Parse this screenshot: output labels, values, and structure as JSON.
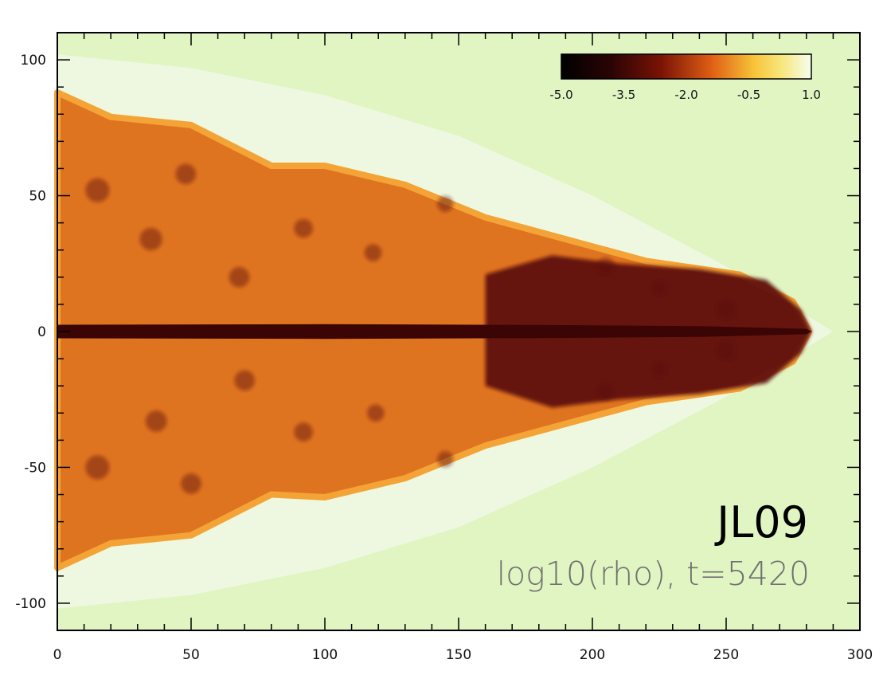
{
  "colors": {
    "background": "#e1f5c2",
    "bow_shock": "#eef8e2",
    "cocoon": "#df7420",
    "cocoon_light": "#f4a437",
    "jet_core": "#3a0504",
    "dark_lobe": "#5b0d0b",
    "axis_frame": "#000000"
  },
  "chart_data": {
    "type": "heatmap",
    "colormap": "heat",
    "xlim": [
      0,
      300
    ],
    "ylim": [
      -110,
      110
    ],
    "x_ticks": [
      0,
      50,
      100,
      150,
      200,
      250,
      300
    ],
    "y_ticks": [
      -100,
      -50,
      0,
      50,
      100
    ],
    "x_tick_labels": [
      "0",
      "50",
      "100",
      "150",
      "200",
      "250",
      "300"
    ],
    "y_tick_labels": [
      "-100",
      "-50",
      "0",
      "50",
      "100"
    ],
    "colorbar": {
      "range": [
        -5.0,
        1.0
      ],
      "ticks": [
        -5.0,
        -3.5,
        -2.0,
        -0.5,
        1.0
      ],
      "tick_labels": [
        "-5.0",
        "-3.5",
        "-2.0",
        "-0.5",
        "1.0"
      ],
      "placement": "top-right"
    },
    "annotations": {
      "run_label": "JL09",
      "caption": "log10(rho), t=5420"
    },
    "shapes": {
      "bow_shock_outline": [
        [
          0,
          102
        ],
        [
          50,
          97
        ],
        [
          100,
          87
        ],
        [
          150,
          72
        ],
        [
          200,
          50
        ],
        [
          250,
          24
        ],
        [
          290,
          0
        ],
        [
          250,
          -24
        ],
        [
          200,
          -50
        ],
        [
          150,
          -72
        ],
        [
          100,
          -87
        ],
        [
          50,
          -97
        ],
        [
          0,
          -102
        ]
      ],
      "cocoon_outline": [
        [
          0,
          88
        ],
        [
          20,
          79
        ],
        [
          50,
          76
        ],
        [
          80,
          61
        ],
        [
          100,
          61
        ],
        [
          130,
          54
        ],
        [
          160,
          42
        ],
        [
          190,
          34
        ],
        [
          220,
          26
        ],
        [
          255,
          21
        ],
        [
          275,
          11
        ],
        [
          281,
          0
        ],
        [
          275,
          -11
        ],
        [
          255,
          -21
        ],
        [
          220,
          -26
        ],
        [
          190,
          -34
        ],
        [
          160,
          -42
        ],
        [
          130,
          -54
        ],
        [
          100,
          -61
        ],
        [
          80,
          -60
        ],
        [
          50,
          -75
        ],
        [
          20,
          -78
        ],
        [
          0,
          -87
        ]
      ],
      "dark_lobe_outline": [
        [
          160,
          21
        ],
        [
          185,
          28
        ],
        [
          210,
          25
        ],
        [
          240,
          23
        ],
        [
          265,
          19
        ],
        [
          278,
          8
        ],
        [
          282,
          0
        ],
        [
          278,
          -8
        ],
        [
          265,
          -19
        ],
        [
          240,
          -23
        ],
        [
          210,
          -25
        ],
        [
          185,
          -28
        ],
        [
          160,
          -20
        ]
      ],
      "jet_core_outline": [
        [
          0,
          2.5
        ],
        [
          100,
          2.7
        ],
        [
          180,
          2.4
        ],
        [
          240,
          2.0
        ],
        [
          280,
          1.0
        ],
        [
          282,
          0
        ],
        [
          280,
          -1.0
        ],
        [
          240,
          -2.0
        ],
        [
          180,
          -2.4
        ],
        [
          100,
          -2.7
        ],
        [
          0,
          -2.5
        ]
      ],
      "vortices": [
        [
          15,
          52,
          4.5
        ],
        [
          35,
          34,
          4.2
        ],
        [
          48,
          58,
          3.8
        ],
        [
          68,
          20,
          3.8
        ],
        [
          92,
          38,
          3.5
        ],
        [
          118,
          29,
          3.2
        ],
        [
          145,
          47,
          3.0
        ],
        [
          205,
          24,
          3.3
        ],
        [
          225,
          16,
          3.0
        ],
        [
          250,
          8,
          3.8
        ],
        [
          15,
          -50,
          4.5
        ],
        [
          37,
          -33,
          4.0
        ],
        [
          50,
          -56,
          3.8
        ],
        [
          70,
          -18,
          3.8
        ],
        [
          92,
          -37,
          3.5
        ],
        [
          119,
          -30,
          3.2
        ],
        [
          145,
          -47,
          3.0
        ],
        [
          205,
          -22,
          3.3
        ],
        [
          225,
          -14,
          3.0
        ],
        [
          250,
          -7,
          3.8
        ]
      ]
    }
  }
}
